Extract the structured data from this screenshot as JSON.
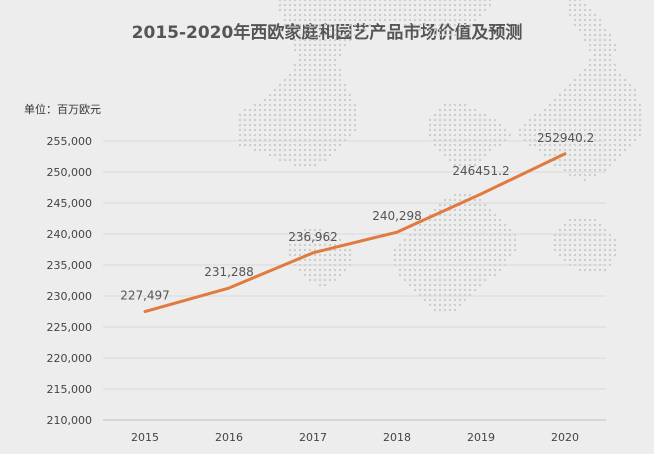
{
  "chart_data": {
    "type": "line",
    "title": "2015-2020年西欧家庭和园艺产品市场价值及预测",
    "unit_label": "单位：百万欧元",
    "categories": [
      "2015",
      "2016",
      "2017",
      "2018",
      "2019",
      "2020"
    ],
    "values": [
      227497,
      231288,
      236962,
      240298,
      246451.2,
      252940.2
    ],
    "value_labels": [
      "227,497",
      "231,288",
      "236,962",
      "240,298",
      "246451.2",
      "252940.2"
    ],
    "ylim": [
      210000,
      255000
    ],
    "yticks": [
      210000,
      215000,
      220000,
      225000,
      230000,
      235000,
      240000,
      245000,
      250000,
      255000
    ],
    "ytick_labels": [
      "210,000",
      "215,000",
      "220,000",
      "225,000",
      "230,000",
      "235,000",
      "240,000",
      "245,000",
      "250,000",
      "255,000"
    ],
    "grid": true,
    "line_color": "#e07a3f"
  }
}
